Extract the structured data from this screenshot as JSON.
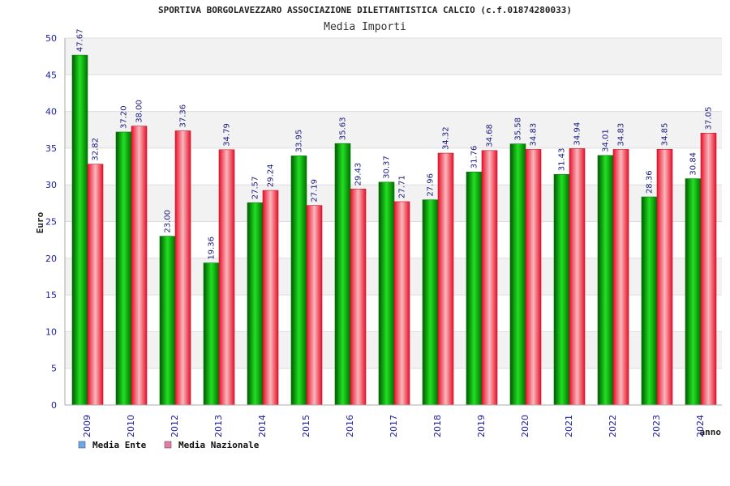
{
  "chart_data": {
    "type": "bar",
    "title": "SPORTIVA BORGOLAVEZZARO ASSOCIAZIONE DILETTANTISTICA CALCIO (c.f.01874280033)",
    "subtitle": "Media Importi",
    "xlabel": "anno",
    "ylabel": "Euro",
    "ylim": [
      0,
      50
    ],
    "yticks": [
      "0",
      "5",
      "10",
      "15",
      "20",
      "25",
      "30",
      "35",
      "40",
      "45",
      "50"
    ],
    "categories": [
      "2009",
      "2010",
      "2012",
      "2013",
      "2014",
      "2015",
      "2016",
      "2017",
      "2018",
      "2019",
      "2020",
      "2021",
      "2022",
      "2023",
      "2024"
    ],
    "series": [
      {
        "name": "Media Ente",
        "values": [
          47.67,
          37.2,
          23.0,
          19.36,
          27.57,
          33.95,
          35.63,
          30.37,
          27.96,
          31.76,
          35.58,
          31.43,
          34.01,
          28.36,
          30.84
        ],
        "labels": [
          "47.67",
          "37.20",
          "23.00",
          "19.36",
          "27.57",
          "33.95",
          "35.63",
          "30.37",
          "27.96",
          "31.76",
          "35.58",
          "31.43",
          "34.01",
          "28.36",
          "30.84"
        ],
        "color": "#00b000",
        "legend_color": "#6aa7ec"
      },
      {
        "name": "Media Nazionale",
        "values": [
          32.82,
          38.0,
          37.36,
          34.79,
          29.24,
          27.19,
          29.43,
          27.71,
          34.32,
          34.68,
          34.83,
          34.94,
          34.83,
          34.85,
          37.05
        ],
        "labels": [
          "32.82",
          "38.00",
          "37.36",
          "34.79",
          "29.24",
          "27.19",
          "29.43",
          "27.71",
          "34.32",
          "34.68",
          "34.83",
          "34.94",
          "34.83",
          "34.85",
          "37.05"
        ],
        "color": "#e8202e",
        "legend_color": "#e77aa6"
      }
    ],
    "grid": true,
    "legend_position": "bottom-left"
  }
}
